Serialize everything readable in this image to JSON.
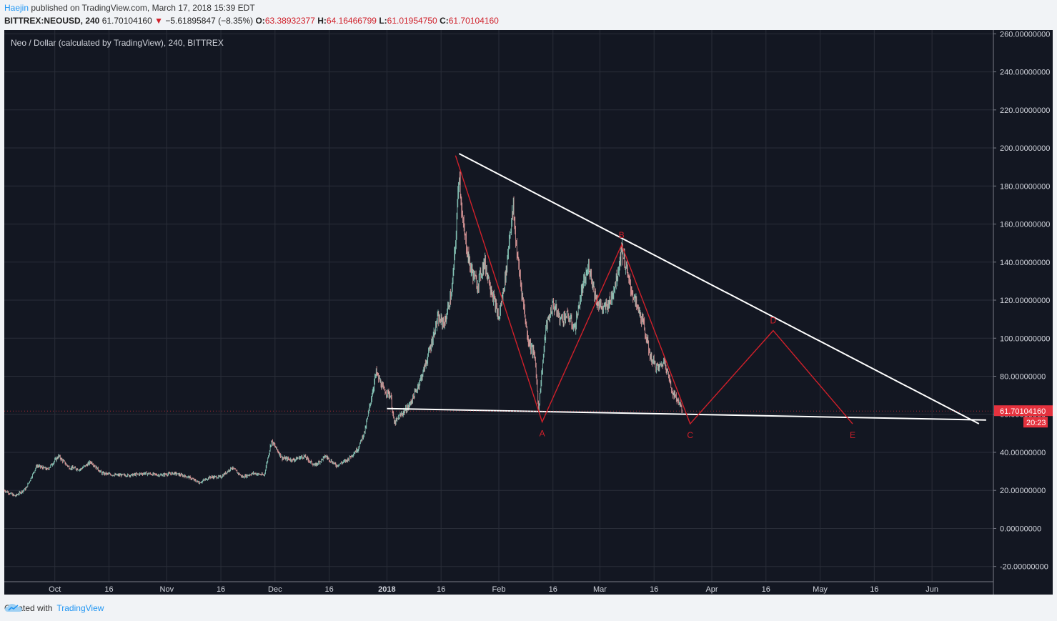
{
  "header": {
    "author": "Haejin",
    "published": "published on TradingView.com, March 17, 2018 15:39 EDT",
    "symbol": "BITTREX:NEOUSD, 240",
    "last": "61.70104160",
    "change": "−5.61895847 (−8.35%)",
    "o_label": "O:",
    "o": "63.38932377",
    "h_label": "H:",
    "h": "64.16466799",
    "l_label": "L:",
    "l": "61.01954750",
    "c_label": "C:",
    "c": "61.70104160"
  },
  "footer": {
    "created_with": "Created with",
    "brand": "TradingView"
  },
  "colors": {
    "background": "#131722",
    "grid": "#2a2e39",
    "candle_up": "#8fd3c3",
    "candle_down": "#e8a0a0",
    "trendline": "#ffffff",
    "wave": "#d0202a",
    "price_tag": "#e5323e"
  },
  "chart_data": {
    "type": "candlestick",
    "title": "Neo / Dollar (calculated by TradingView), 240, BITTREX",
    "ylim": [
      -28,
      262
    ],
    "y_ticks": [
      260,
      240,
      220,
      200,
      180,
      160,
      140,
      120,
      100,
      80,
      60,
      40,
      20,
      0,
      -20
    ],
    "y_tick_labels": [
      "260.00000000",
      "240.00000000",
      "220.00000000",
      "200.00000000",
      "180.00000000",
      "160.00000000",
      "140.00000000",
      "120.00000000",
      "100.00000000",
      "80.00000000",
      "60.00000000",
      "40.00000000",
      "20.00000000",
      "0.00000000",
      "-20.00000000"
    ],
    "x_range": [
      "2017-09-17",
      "2018-06-18"
    ],
    "x_ticks": [
      {
        "date": "2017-10-01",
        "label": "Oct",
        "bold": false
      },
      {
        "date": "2017-10-16",
        "label": "16",
        "bold": false
      },
      {
        "date": "2017-11-01",
        "label": "Nov",
        "bold": false
      },
      {
        "date": "2017-11-16",
        "label": "16",
        "bold": false
      },
      {
        "date": "2017-12-01",
        "label": "Dec",
        "bold": false
      },
      {
        "date": "2017-12-16",
        "label": "16",
        "bold": false
      },
      {
        "date": "2018-01-01",
        "label": "2018",
        "bold": true
      },
      {
        "date": "2018-01-16",
        "label": "16",
        "bold": false
      },
      {
        "date": "2018-02-01",
        "label": "Feb",
        "bold": false
      },
      {
        "date": "2018-02-16",
        "label": "16",
        "bold": false
      },
      {
        "date": "2018-03-01",
        "label": "Mar",
        "bold": false
      },
      {
        "date": "2018-03-16",
        "label": "16",
        "bold": false
      },
      {
        "date": "2018-04-01",
        "label": "Apr",
        "bold": false
      },
      {
        "date": "2018-04-16",
        "label": "16",
        "bold": false
      },
      {
        "date": "2018-05-01",
        "label": "May",
        "bold": false
      },
      {
        "date": "2018-05-16",
        "label": "16",
        "bold": false
      },
      {
        "date": "2018-06-01",
        "label": "Jun",
        "bold": false
      }
    ],
    "price_path": [
      [
        "2017-09-17",
        20
      ],
      [
        "2017-09-20",
        17
      ],
      [
        "2017-09-23",
        21
      ],
      [
        "2017-09-26",
        33
      ],
      [
        "2017-09-29",
        31
      ],
      [
        "2017-10-02",
        38
      ],
      [
        "2017-10-05",
        32
      ],
      [
        "2017-10-08",
        31
      ],
      [
        "2017-10-11",
        35
      ],
      [
        "2017-10-14",
        29
      ],
      [
        "2017-10-18",
        28
      ],
      [
        "2017-10-22",
        28
      ],
      [
        "2017-10-26",
        29
      ],
      [
        "2017-10-30",
        28
      ],
      [
        "2017-11-03",
        29
      ],
      [
        "2017-11-07",
        27
      ],
      [
        "2017-11-10",
        24
      ],
      [
        "2017-11-13",
        27
      ],
      [
        "2017-11-16",
        27
      ],
      [
        "2017-11-19",
        32
      ],
      [
        "2017-11-22",
        27
      ],
      [
        "2017-11-25",
        29
      ],
      [
        "2017-11-28",
        28
      ],
      [
        "2017-11-30",
        46
      ],
      [
        "2017-12-03",
        37
      ],
      [
        "2017-12-06",
        36
      ],
      [
        "2017-12-09",
        38
      ],
      [
        "2017-12-12",
        33
      ],
      [
        "2017-12-15",
        38
      ],
      [
        "2017-12-18",
        33
      ],
      [
        "2017-12-21",
        36
      ],
      [
        "2017-12-24",
        42
      ],
      [
        "2017-12-26",
        52
      ],
      [
        "2017-12-27",
        62
      ],
      [
        "2017-12-29",
        82
      ],
      [
        "2017-12-31",
        73
      ],
      [
        "2018-01-02",
        70
      ],
      [
        "2018-01-03",
        55
      ],
      [
        "2018-01-05",
        60
      ],
      [
        "2018-01-07",
        64
      ],
      [
        "2018-01-09",
        72
      ],
      [
        "2018-01-11",
        82
      ],
      [
        "2018-01-13",
        95
      ],
      [
        "2018-01-15",
        110
      ],
      [
        "2018-01-17",
        108
      ],
      [
        "2018-01-19",
        125
      ],
      [
        "2018-01-20",
        150
      ],
      [
        "2018-01-21",
        188
      ],
      [
        "2018-01-22",
        160
      ],
      [
        "2018-01-24",
        138
      ],
      [
        "2018-01-26",
        128
      ],
      [
        "2018-01-28",
        140
      ],
      [
        "2018-01-30",
        125
      ],
      [
        "2018-02-01",
        110
      ],
      [
        "2018-02-03",
        135
      ],
      [
        "2018-02-04",
        155
      ],
      [
        "2018-02-05",
        168
      ],
      [
        "2018-02-06",
        145
      ],
      [
        "2018-02-07",
        130
      ],
      [
        "2018-02-09",
        100
      ],
      [
        "2018-02-11",
        90
      ],
      [
        "2018-02-12",
        63
      ],
      [
        "2018-02-14",
        105
      ],
      [
        "2018-02-16",
        118
      ],
      [
        "2018-02-18",
        110
      ],
      [
        "2018-02-20",
        112
      ],
      [
        "2018-02-22",
        105
      ],
      [
        "2018-02-24",
        125
      ],
      [
        "2018-02-26",
        138
      ],
      [
        "2018-02-28",
        120
      ],
      [
        "2018-03-02",
        115
      ],
      [
        "2018-03-04",
        120
      ],
      [
        "2018-03-06",
        135
      ],
      [
        "2018-03-07",
        148
      ],
      [
        "2018-03-09",
        130
      ],
      [
        "2018-03-11",
        118
      ],
      [
        "2018-03-13",
        108
      ],
      [
        "2018-03-15",
        90
      ],
      [
        "2018-03-17",
        84
      ],
      [
        "2018-03-19",
        88
      ],
      [
        "2018-03-21",
        72
      ],
      [
        "2018-03-23",
        66
      ],
      [
        "2018-03-24",
        62
      ]
    ],
    "wave_points": [
      {
        "label": "",
        "date": "2018-01-20",
        "y": 196
      },
      {
        "label": "A",
        "date": "2018-02-13",
        "y": 56
      },
      {
        "label": "B",
        "date": "2018-03-07",
        "y": 149
      },
      {
        "label": "C",
        "date": "2018-03-26",
        "y": 55
      },
      {
        "label": "D",
        "date": "2018-04-18",
        "y": 104
      },
      {
        "label": "E",
        "date": "2018-05-10",
        "y": 55
      }
    ],
    "trendlines": [
      {
        "name": "upper",
        "from": {
          "date": "2018-01-21",
          "y": 197
        },
        "to": {
          "date": "2018-06-14",
          "y": 55
        }
      },
      {
        "name": "lower",
        "from": {
          "date": "2018-01-01",
          "y": 63
        },
        "to": {
          "date": "2018-06-16",
          "y": 57
        }
      }
    ],
    "last_price_tag": {
      "value": 61.7010416,
      "label": "61.70104160",
      "countdown": "20:23"
    }
  }
}
